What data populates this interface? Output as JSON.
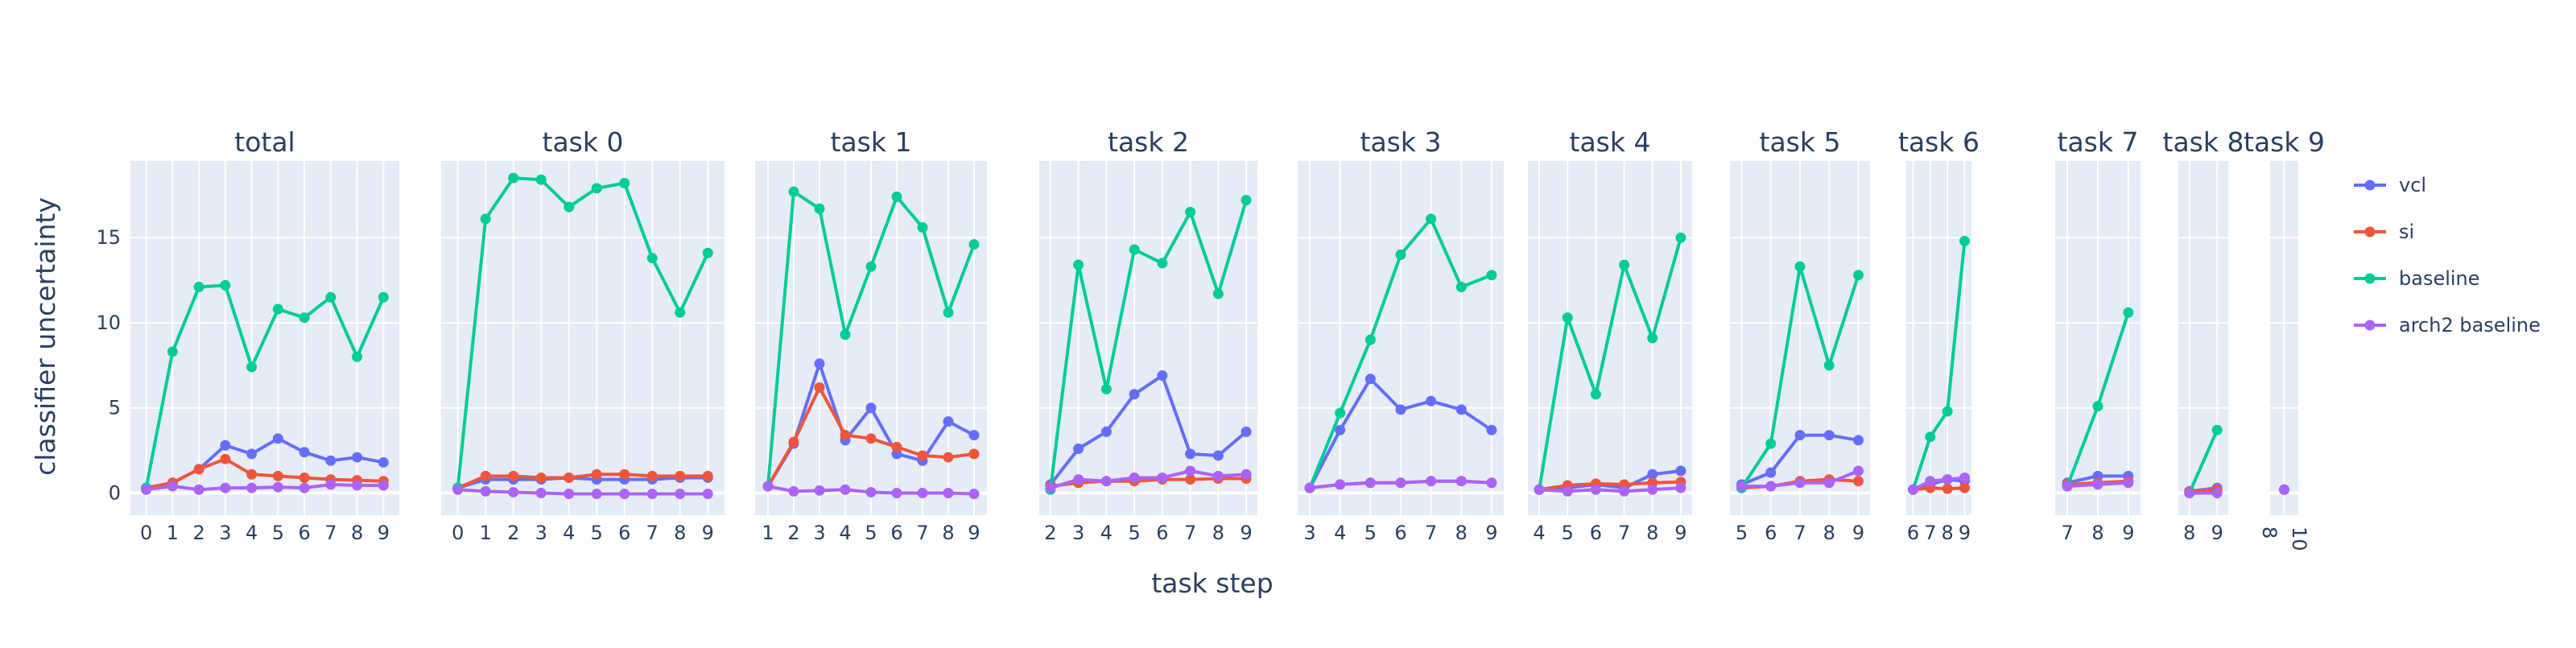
{
  "chart_data": {
    "type": "line",
    "ylabel": "classifier uncertainty",
    "xlabel": "task step",
    "ylim": [
      -1.3,
      19.5
    ],
    "yticks": [
      0,
      5,
      10,
      15
    ],
    "grid": true,
    "legend_position": "right",
    "series_order": [
      "vcl",
      "si",
      "baseline",
      "arch2 baseline"
    ],
    "colors": {
      "vcl": "#636efa",
      "si": "#ef553b",
      "baseline": "#00cc96",
      "arch2 baseline": "#ab63fa"
    },
    "legend": [
      {
        "key": "vcl",
        "label": "vcl"
      },
      {
        "key": "si",
        "label": "si"
      },
      {
        "key": "baseline",
        "label": "baseline"
      },
      {
        "key": "arch2 baseline",
        "label": "arch2 baseline"
      }
    ],
    "panels": [
      {
        "title": "total",
        "x": [
          0,
          1,
          2,
          3,
          4,
          5,
          6,
          7,
          8,
          9
        ],
        "xlim": [
          -0.6,
          9.6
        ],
        "xticks": [
          "0",
          "1",
          "2",
          "3",
          "4",
          "5",
          "6",
          "7",
          "8",
          "9"
        ],
        "series": {
          "vcl": [
            0.3,
            0.6,
            1.4,
            2.8,
            2.3,
            3.2,
            2.4,
            1.9,
            2.1,
            1.8
          ],
          "si": [
            0.3,
            0.6,
            1.4,
            2.0,
            1.1,
            1.0,
            0.9,
            0.8,
            0.75,
            0.7
          ],
          "baseline": [
            0.3,
            8.3,
            12.1,
            12.2,
            7.4,
            10.8,
            10.3,
            11.5,
            8.0,
            11.5
          ],
          "arch2 baseline": [
            0.2,
            0.4,
            0.2,
            0.3,
            0.3,
            0.35,
            0.3,
            0.5,
            0.45,
            0.45
          ]
        }
      },
      {
        "title": "task 0",
        "x": [
          0,
          1,
          2,
          3,
          4,
          5,
          6,
          7,
          8,
          9
        ],
        "xlim": [
          -0.6,
          9.6
        ],
        "xticks": [
          "0",
          "1",
          "2",
          "3",
          "4",
          "5",
          "6",
          "7",
          "8",
          "9"
        ],
        "series": {
          "vcl": [
            0.3,
            0.8,
            0.8,
            0.8,
            0.9,
            0.8,
            0.8,
            0.8,
            0.9,
            0.9
          ],
          "si": [
            0.3,
            1.0,
            1.0,
            0.9,
            0.9,
            1.1,
            1.1,
            1.0,
            1.0,
            1.0
          ],
          "baseline": [
            0.3,
            16.1,
            18.5,
            18.4,
            16.8,
            17.9,
            18.2,
            13.8,
            10.6,
            14.1
          ],
          "arch2 baseline": [
            0.2,
            0.1,
            0.05,
            0.0,
            -0.05,
            -0.05,
            -0.05,
            -0.05,
            -0.05,
            -0.05
          ]
        }
      },
      {
        "title": "task 1",
        "x": [
          1,
          2,
          3,
          4,
          5,
          6,
          7,
          8,
          9
        ],
        "xlim": [
          0.5,
          9.5
        ],
        "xticks": [
          "1",
          "2",
          "3",
          "4",
          "5",
          "6",
          "7",
          "8",
          "9"
        ],
        "series": {
          "vcl": [
            0.4,
            2.9,
            7.6,
            3.1,
            5.0,
            2.3,
            1.9,
            4.2,
            3.4
          ],
          "si": [
            0.4,
            3.0,
            6.2,
            3.4,
            3.2,
            2.7,
            2.2,
            2.1,
            2.3
          ],
          "baseline": [
            0.4,
            17.7,
            16.7,
            9.3,
            13.3,
            17.4,
            15.6,
            10.6,
            14.6
          ],
          "arch2 baseline": [
            0.4,
            0.1,
            0.15,
            0.2,
            0.05,
            0.0,
            0.0,
            0.0,
            -0.05
          ]
        }
      },
      {
        "title": "task 2",
        "x": [
          2,
          3,
          4,
          5,
          6,
          7,
          8,
          9
        ],
        "xlim": [
          1.6,
          9.4
        ],
        "xticks": [
          "2",
          "3",
          "4",
          "5",
          "6",
          "7",
          "8",
          "9"
        ],
        "series": {
          "vcl": [
            0.5,
            2.6,
            3.6,
            5.8,
            6.9,
            2.3,
            2.2,
            3.6
          ],
          "si": [
            0.4,
            0.6,
            0.7,
            0.7,
            0.8,
            0.8,
            0.85,
            0.85
          ],
          "baseline": [
            0.2,
            13.4,
            6.1,
            14.3,
            13.5,
            16.5,
            11.7,
            17.2
          ],
          "arch2 baseline": [
            0.3,
            0.8,
            0.7,
            0.9,
            0.9,
            1.3,
            1.0,
            1.1
          ]
        }
      },
      {
        "title": "task 3",
        "x": [
          3,
          4,
          5,
          6,
          7,
          8,
          9
        ],
        "xlim": [
          2.6,
          9.4
        ],
        "xticks": [
          "3",
          "4",
          "5",
          "6",
          "7",
          "8",
          "9"
        ],
        "series": {
          "vcl": [
            0.3,
            3.7,
            6.7,
            4.9,
            5.4,
            4.9,
            3.7
          ],
          "si": [
            0.3,
            0.5,
            0.6,
            0.6,
            0.7,
            0.7,
            0.6
          ],
          "baseline": [
            0.3,
            4.7,
            9.0,
            14.0,
            16.1,
            12.1,
            12.8
          ],
          "arch2 baseline": [
            0.3,
            0.5,
            0.6,
            0.6,
            0.7,
            0.7,
            0.6
          ]
        }
      },
      {
        "title": "task 4",
        "x": [
          4,
          5,
          6,
          7,
          8,
          9
        ],
        "xlim": [
          3.6,
          9.4
        ],
        "xticks": [
          "4",
          "5",
          "6",
          "7",
          "8",
          "9"
        ],
        "series": {
          "vcl": [
            0.2,
            0.3,
            0.5,
            0.3,
            1.1,
            1.3
          ],
          "si": [
            0.2,
            0.45,
            0.55,
            0.5,
            0.6,
            0.65
          ],
          "baseline": [
            0.2,
            10.3,
            5.8,
            13.4,
            9.1,
            15.0
          ],
          "arch2 baseline": [
            0.2,
            0.1,
            0.2,
            0.1,
            0.2,
            0.3
          ]
        }
      },
      {
        "title": "task 5",
        "x": [
          5,
          6,
          7,
          8,
          9
        ],
        "xlim": [
          4.6,
          9.4
        ],
        "xticks": [
          "5",
          "6",
          "7",
          "8",
          "9"
        ],
        "series": {
          "vcl": [
            0.5,
            1.2,
            3.4,
            3.4,
            3.1
          ],
          "si": [
            0.3,
            0.4,
            0.7,
            0.8,
            0.7
          ],
          "baseline": [
            0.3,
            2.9,
            13.3,
            7.5,
            12.8
          ],
          "arch2 baseline": [
            0.4,
            0.4,
            0.6,
            0.6,
            1.3
          ]
        }
      },
      {
        "title": "task 6",
        "x": [
          6,
          7,
          8,
          9
        ],
        "xlim": [
          5.6,
          9.4
        ],
        "xticks": [
          "6",
          "7",
          "8",
          "9"
        ],
        "series": {
          "vcl": [
            0.2,
            0.5,
            0.8,
            0.7
          ],
          "si": [
            0.2,
            0.3,
            0.25,
            0.3
          ],
          "baseline": [
            0.2,
            3.3,
            4.8,
            14.8
          ],
          "arch2 baseline": [
            0.2,
            0.7,
            0.8,
            0.9
          ]
        }
      },
      {
        "title": "task 7",
        "x": [
          7,
          8,
          9
        ],
        "xlim": [
          6.6,
          9.4
        ],
        "xticks": [
          "7",
          "8",
          "9"
        ],
        "series": {
          "vcl": [
            0.6,
            1.0,
            1.0
          ],
          "si": [
            0.5,
            0.6,
            0.7
          ],
          "baseline": [
            0.4,
            5.1,
            10.6
          ],
          "arch2 baseline": [
            0.4,
            0.5,
            0.6
          ]
        }
      },
      {
        "title": "task 8",
        "x": [
          8,
          9
        ],
        "xlim": [
          7.6,
          9.4
        ],
        "xticks": [
          "8",
          "9"
        ],
        "series": {
          "vcl": [
            0.1,
            0.3
          ],
          "si": [
            0.1,
            0.2
          ],
          "baseline": [
            0.0,
            3.7
          ],
          "arch2 baseline": [
            0.0,
            0.0
          ]
        }
      },
      {
        "title": "task 9",
        "x": [
          9
        ],
        "xlim": [
          8.0,
          10.0
        ],
        "xticks": [
          "8",
          "10"
        ],
        "rotated_ticks": true,
        "series": {
          "vcl": [
            0.2
          ],
          "si": [
            0.2
          ],
          "baseline": [
            0.2
          ],
          "arch2 baseline": [
            0.2
          ]
        }
      }
    ]
  }
}
